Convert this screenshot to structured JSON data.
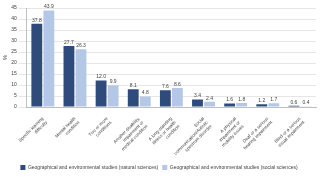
{
  "chart_data": {
    "type": "bar",
    "y_label": "%",
    "categories": [
      "Specific learning difficulty",
      "Mental health condition",
      "Two or more conditions",
      "Another disability, impairment or medical condition",
      "A long-standing illness or health condition",
      "Social communication/Autistic spectrum disorder",
      "A physical impairment or mobility issues",
      "Deaf or a serious hearing impairment",
      "Blind or a serious visual impairment"
    ],
    "series": [
      {
        "name": "Geographical and environmental studies (natural sciences)",
        "color": "#2f4b7c",
        "values": [
          37.8,
          27.7,
          12.0,
          8.1,
          7.6,
          3.4,
          1.6,
          1.2,
          0.6
        ],
        "value_labels": [
          "37.8",
          "27.7",
          "12.0",
          "8.1",
          "7.6",
          "3.4",
          "1.6",
          "1.2",
          "0.6"
        ]
      },
      {
        "name": "Geographical and environmental studies (social sciences)",
        "color": "#b4c7e7",
        "values": [
          43.9,
          26.3,
          9.9,
          4.8,
          8.6,
          2.4,
          1.8,
          1.7,
          0.4
        ],
        "value_labels": [
          "43.9",
          "26.3",
          "9.9",
          "4.8",
          "8.6",
          "2.4",
          "1.8",
          "1.7",
          "0.4"
        ]
      }
    ],
    "ylim": [
      0,
      45
    ],
    "yticks": [
      0,
      5,
      10,
      15,
      20,
      25,
      30,
      35,
      40,
      45
    ],
    "grid": true,
    "legend": "bottom",
    "data_labels": true
  }
}
